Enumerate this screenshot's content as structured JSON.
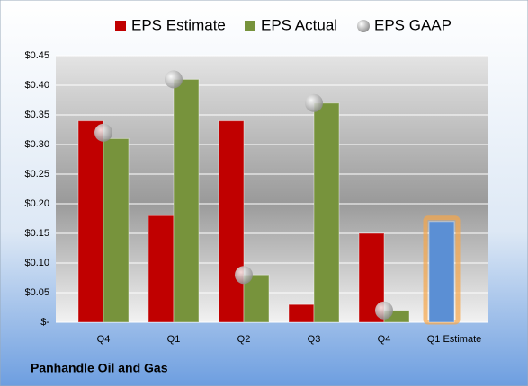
{
  "chart_data": {
    "type": "bar",
    "subtitle": "Panhandle Oil and Gas",
    "categories": [
      "Q4",
      "Q1",
      "Q2",
      "Q3",
      "Q4",
      "Q1 Estimate"
    ],
    "series": [
      {
        "name": "EPS Estimate",
        "color": "#c00000",
        "values": [
          0.34,
          0.18,
          0.34,
          0.03,
          0.15,
          0.17
        ],
        "colors": [
          "#c00000",
          "#c00000",
          "#c00000",
          "#c00000",
          "#c00000",
          "#5b8fd4"
        ]
      },
      {
        "name": "EPS Actual",
        "color": "#77933c",
        "values": [
          0.31,
          0.41,
          0.08,
          0.37,
          0.02,
          null
        ]
      },
      {
        "name": "EPS GAAP",
        "color": "#b0b0b0",
        "marker": "circle",
        "values": [
          0.32,
          0.41,
          0.08,
          0.37,
          0.02,
          null
        ]
      }
    ],
    "ylim": [
      0,
      0.45
    ],
    "yticks": [
      {
        "value": 0,
        "label": "$-"
      },
      {
        "value": 0.05,
        "label": "$0.05"
      },
      {
        "value": 0.1,
        "label": "$0.10"
      },
      {
        "value": 0.15,
        "label": "$0.15"
      },
      {
        "value": 0.2,
        "label": "$0.20"
      },
      {
        "value": 0.25,
        "label": "$0.25"
      },
      {
        "value": 0.3,
        "label": "$0.30"
      },
      {
        "value": 0.35,
        "label": "$0.35"
      },
      {
        "value": 0.4,
        "label": "$0.40"
      },
      {
        "value": 0.45,
        "label": "$0.45"
      }
    ],
    "grid": true,
    "legend": "top"
  }
}
